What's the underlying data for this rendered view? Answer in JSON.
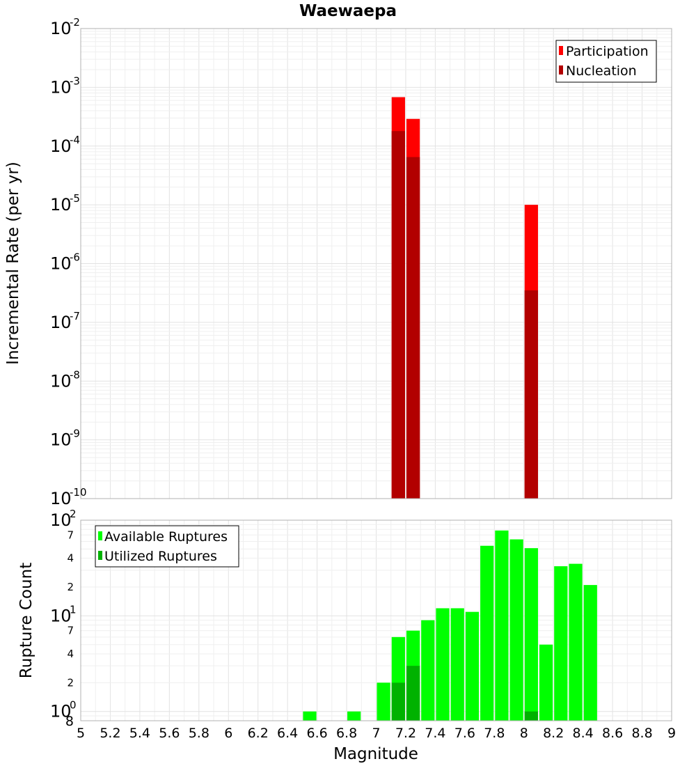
{
  "chart_data": [
    {
      "type": "bar",
      "title": "Waewaepa",
      "xlabel": "",
      "ylabel": "Incremental Rate (per yr)",
      "y_scale": "log",
      "ylim": [
        1e-10,
        0.01
      ],
      "xlim": [
        5,
        9
      ],
      "legend_position": "top-right",
      "bar_width": 0.1,
      "y_ticks": [
        {
          "value": 1e-10,
          "base": "10",
          "exp": "-10"
        },
        {
          "value": 1e-09,
          "base": "10",
          "exp": "-9"
        },
        {
          "value": 1e-08,
          "base": "10",
          "exp": "-8"
        },
        {
          "value": 1e-07,
          "base": "10",
          "exp": "-7"
        },
        {
          "value": 1e-06,
          "base": "10",
          "exp": "-6"
        },
        {
          "value": 1e-05,
          "base": "10",
          "exp": "-5"
        },
        {
          "value": 0.0001,
          "base": "10",
          "exp": "-4"
        },
        {
          "value": 0.001,
          "base": "10",
          "exp": "-3"
        },
        {
          "value": 0.01,
          "base": "10",
          "exp": "-2"
        }
      ],
      "series": [
        {
          "name": "Participation",
          "color": "#ff0000",
          "x": [
            7.15,
            7.25,
            8.05
          ],
          "values": [
            0.00068,
            0.00029,
            1e-05
          ]
        },
        {
          "name": "Nucleation",
          "color": "#b20000",
          "x": [
            7.15,
            7.25,
            8.05
          ],
          "values": [
            0.00018,
            6.5e-05,
            3.5e-07
          ]
        }
      ]
    },
    {
      "type": "bar",
      "title": "",
      "xlabel": "Magnitude",
      "ylabel": "Rupture Count",
      "y_scale": "log",
      "ylim": [
        0.8,
        100
      ],
      "xlim": [
        5,
        9
      ],
      "legend_position": "top-left",
      "bar_width": 0.1,
      "x_ticks": [
        "5",
        "5.2",
        "5.4",
        "5.6",
        "5.8",
        "6",
        "6.2",
        "6.4",
        "6.6",
        "6.8",
        "7",
        "7.2",
        "7.4",
        "7.6",
        "7.8",
        "8",
        "8.2",
        "8.4",
        "8.6",
        "8.8",
        "9"
      ],
      "y_major_ticks": [
        {
          "value": 1,
          "base": "10",
          "exp": "0"
        },
        {
          "value": 10,
          "base": "10",
          "exp": "1"
        },
        {
          "value": 100,
          "base": "10",
          "exp": "2"
        }
      ],
      "y_minor_ticks": [
        {
          "value": 0.8,
          "label": "8"
        },
        {
          "value": 2,
          "label": "2"
        },
        {
          "value": 4,
          "label": "4"
        },
        {
          "value": 7,
          "label": "7"
        },
        {
          "value": 20,
          "label": "2"
        },
        {
          "value": 40,
          "label": "4"
        },
        {
          "value": 70,
          "label": "7"
        }
      ],
      "series": [
        {
          "name": "Available Ruptures",
          "color": "#00ff00",
          "x": [
            6.55,
            6.85,
            7.05,
            7.15,
            7.25,
            7.35,
            7.45,
            7.55,
            7.65,
            7.75,
            7.85,
            7.95,
            8.05,
            8.15,
            8.25,
            8.35,
            8.45
          ],
          "values": [
            1,
            1,
            2,
            6,
            7,
            9,
            12,
            12,
            11,
            54,
            78,
            63,
            51,
            5,
            33,
            35,
            21
          ]
        },
        {
          "name": "Utilized Ruptures",
          "color": "#00b200",
          "x": [
            7.15,
            7.25,
            8.05
          ],
          "values": [
            2,
            3,
            1
          ]
        }
      ]
    }
  ]
}
